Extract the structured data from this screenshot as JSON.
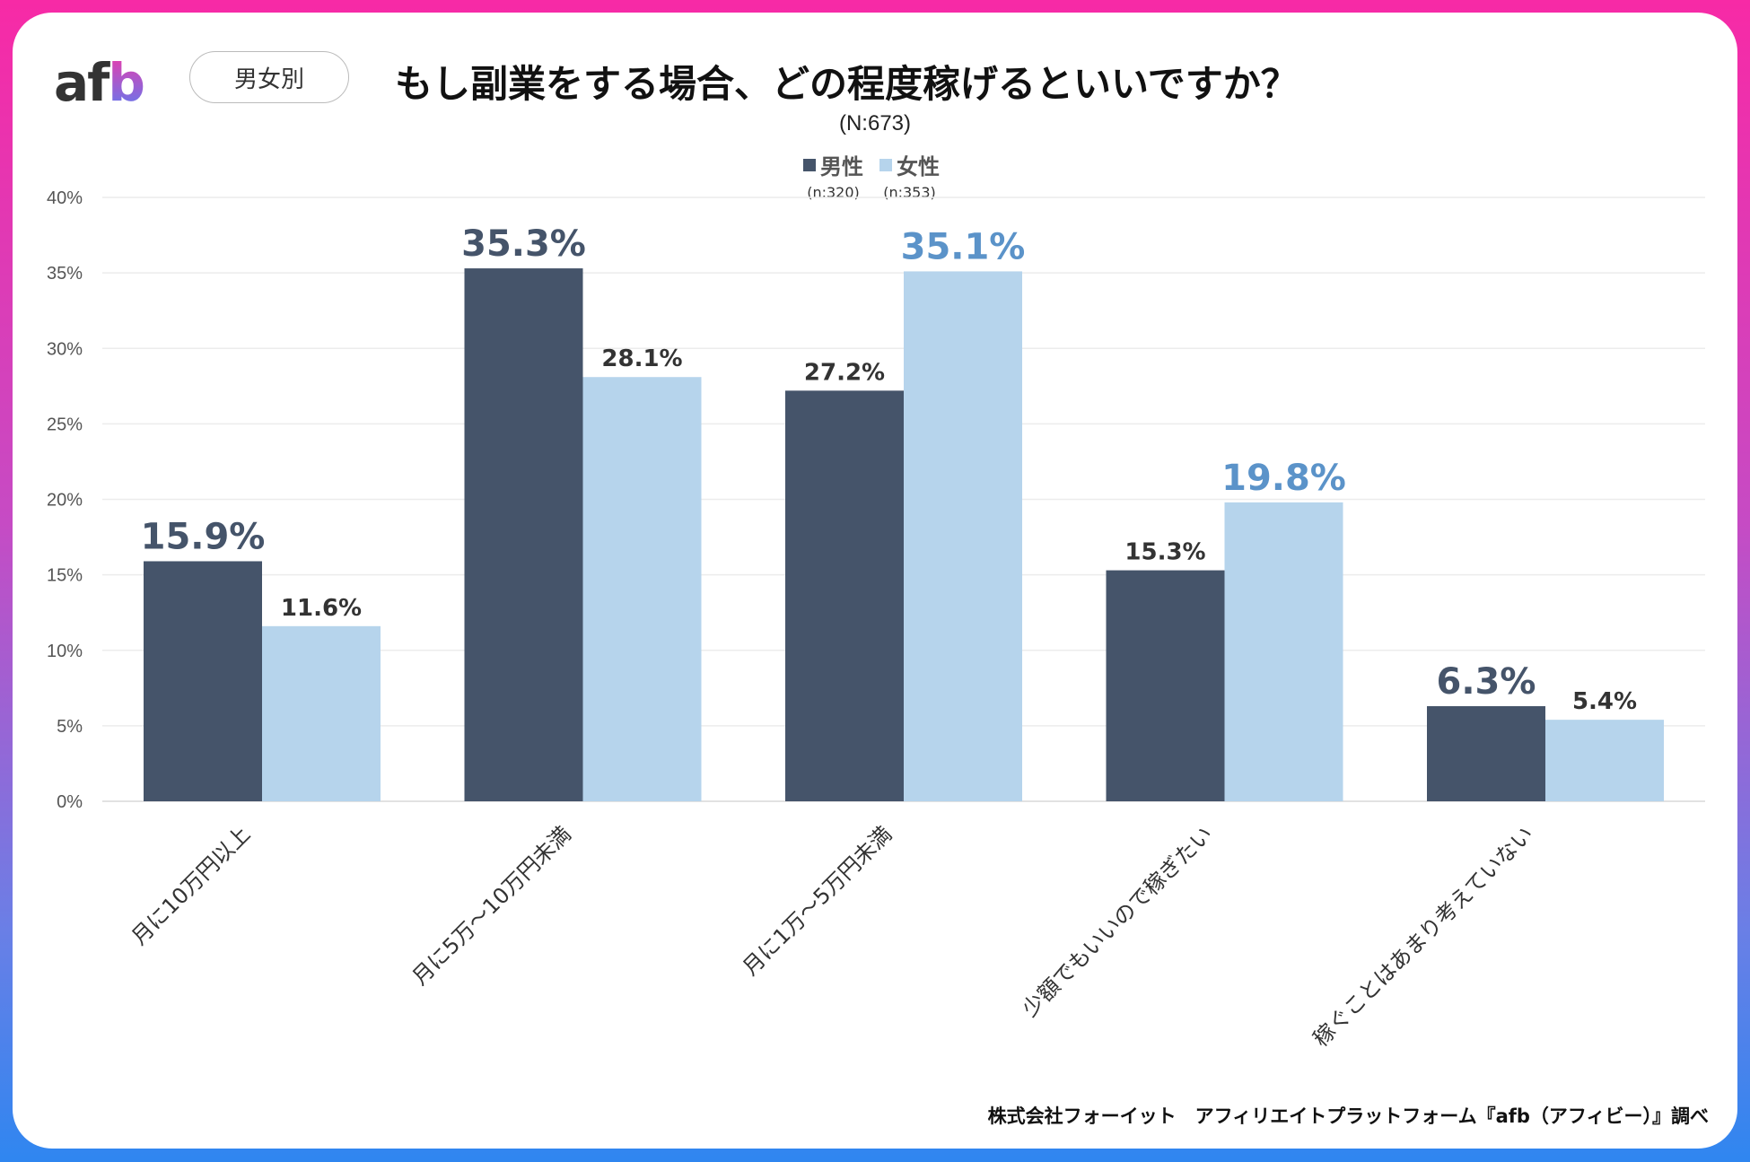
{
  "header": {
    "logo": {
      "a": "af",
      "b": "b"
    },
    "segment_label": "男女別",
    "title": "もし副業をする場合、どの程度稼げるといいですか？",
    "sample_size": "(N:673)"
  },
  "legend": [
    {
      "label": "男性",
      "sub": "(n:320)",
      "color": "#45546a"
    },
    {
      "label": "女性",
      "sub": "(n:353)",
      "color": "#b6d4ec"
    }
  ],
  "footer": "株式会社フォーイット　アフィリエイトプラットフォーム『afb（アフィビー）』調べ",
  "chart_data": {
    "type": "bar",
    "title": "もし副業をする場合、どの程度稼げるといいですか？",
    "categories": [
      "月に10万円以上",
      "月に5万～10万円未満",
      "月に1万～5万円未満",
      "少額でもいいので稼ぎたい",
      "稼ぐことはあまり考えていない"
    ],
    "series": [
      {
        "name": "男性",
        "values": [
          15.9,
          35.3,
          27.2,
          15.3,
          6.3
        ],
        "color": "#45546a",
        "highlight_color": "#45546a"
      },
      {
        "name": "女性",
        "values": [
          11.6,
          28.1,
          35.1,
          19.8,
          5.4
        ],
        "color": "#b6d4ec",
        "highlight_color": "#5b93c9"
      }
    ],
    "highlight": [
      [
        true,
        true,
        false,
        false,
        true
      ],
      [
        false,
        false,
        true,
        true,
        false
      ]
    ],
    "y_ticks": [
      "0%",
      "5%",
      "10%",
      "15%",
      "20%",
      "25%",
      "30%",
      "35%",
      "40%"
    ],
    "ylim": [
      0,
      40
    ],
    "unit": "%",
    "grid": true,
    "legend_position": "top-center"
  }
}
